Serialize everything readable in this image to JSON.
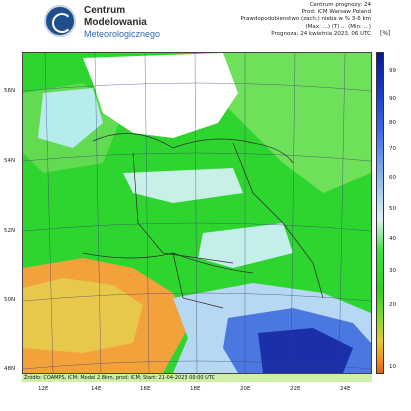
{
  "header": {
    "logo_line1": "Centrum",
    "logo_line2": "Modelowania",
    "logo_line3": "Meteorologicznego",
    "meta_line1": "Centrum prognozy: 24",
    "meta_line2": "Prod: ICM Warsaw Poland",
    "meta_line3": "Prawdopodobienstwo (zach.) nieba w % 3-6 km",
    "meta_line4": "(Max: ...) (T) ... (Min: ...)",
    "meta_line5": "Prognoza: 24 kwietnia 2023, 06 UTC",
    "unit": "[%]"
  },
  "map": {
    "longitude_labels": [
      "12E",
      "14E",
      "16E",
      "18E",
      "20E",
      "22E",
      "24E"
    ],
    "latitude_labels": [
      "56N",
      "54N",
      "52N",
      "50N",
      "48N"
    ],
    "footer": "Źródło: COAMPS, ICM: Model 2.8km, prod: ICM; Start: 21-04-2023 00:00 UTC",
    "colors": {
      "green": "#2fd52f",
      "light_green": "#7ce85a",
      "cyan": "#b7ecec",
      "blue": "#2a50d8",
      "orange": "#f3a13b",
      "yellow": "#e8d24a",
      "white": "#ffffff"
    }
  },
  "colorbar": {
    "ticks": [
      "99",
      "90",
      "80",
      "70",
      "60",
      "50",
      "40",
      "30",
      "20",
      "10"
    ]
  }
}
